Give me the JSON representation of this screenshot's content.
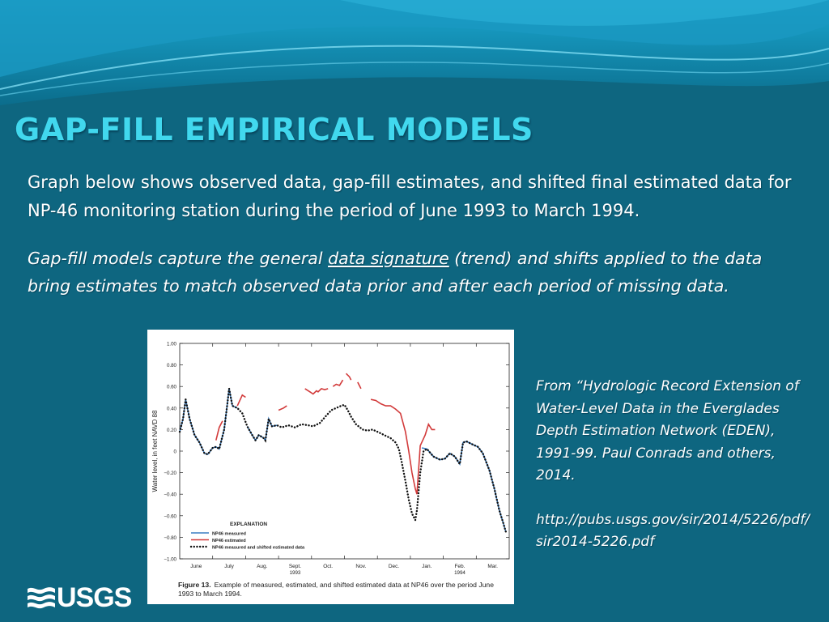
{
  "slide": {
    "title": "GAP-FILL EMPIRICAL MODELS",
    "paragraph1": "Graph below shows observed data, gap-fill estimates, and shifted final estimated data for NP-46 monitoring station during the period of June 1993 to March 1994.",
    "paragraph2": {
      "before": "Gap-fill models capture the general ",
      "underlined": "data signature",
      "after": " (trend) and shifts applied to the data bring estimates to match observed data prior and after each period of missing data."
    },
    "source": {
      "citation": "From “Hydrologic Record Extension of Water-Level Data in the Everglades Depth Estimation Network (EDEN), 1991-99. Paul Conrads and others, 2014.",
      "url": "http://pubs.usgs.gov/sir/2014/5226/pdf/sir2014-5226.pdf"
    },
    "logo": "USGS"
  },
  "colors": {
    "background": "#0e6680",
    "title": "#41d8ee",
    "measured": "#3b7fc4",
    "estimated": "#d23a3a",
    "shifted": "#111111"
  },
  "figure": {
    "label": "Figure 13.",
    "caption": "Example of measured, estimated, and shifted estimated data at NP46 over the period June 1993 to March 1994."
  },
  "chart_data": {
    "type": "line",
    "ylabel": "Water level, in feet NAVD 88",
    "ylim": [
      -1.0,
      1.0
    ],
    "yticks": [
      "1.00",
      "0.80",
      "0.60",
      "0.40",
      "0.20",
      "0",
      "−0.20",
      "−0.40",
      "−0.60",
      "−0.80",
      "−1.00"
    ],
    "xlim": [
      0,
      10
    ],
    "xticks": [
      {
        "label": "June",
        "sub": "",
        "pos": 0.5
      },
      {
        "label": "July",
        "sub": "",
        "pos": 1.5
      },
      {
        "label": "Aug.",
        "sub": "",
        "pos": 2.5
      },
      {
        "label": "Sept.",
        "sub": "1993",
        "pos": 3.5
      },
      {
        "label": "Oct.",
        "sub": "",
        "pos": 4.5
      },
      {
        "label": "Nov.",
        "sub": "",
        "pos": 5.5
      },
      {
        "label": "Dec.",
        "sub": "",
        "pos": 6.5
      },
      {
        "label": "Jan.",
        "sub": "",
        "pos": 7.5
      },
      {
        "label": "Feb.",
        "sub": "1994",
        "pos": 8.5
      },
      {
        "label": "Mar.",
        "sub": "",
        "pos": 9.5
      }
    ],
    "legend": {
      "title": "EXPLANATION",
      "placement": "bottom-left",
      "items": [
        "NP46 measured",
        "NP46 estimated",
        "NP46 measured and shifted estimated data"
      ]
    },
    "series": [
      {
        "name": "NP46 measured",
        "segments": [
          [
            [
              0,
              0.18
            ],
            [
              0.1,
              0.3
            ],
            [
              0.18,
              0.48
            ],
            [
              0.3,
              0.3
            ],
            [
              0.45,
              0.15
            ],
            [
              0.6,
              0.08
            ],
            [
              0.75,
              -0.02
            ],
            [
              0.85,
              -0.03
            ],
            [
              1.0,
              0.03
            ],
            [
              1.1,
              0.04
            ],
            [
              1.2,
              0.02
            ],
            [
              1.35,
              0.2
            ],
            [
              1.45,
              0.45
            ],
            [
              1.5,
              0.58
            ],
            [
              1.6,
              0.42
            ],
            [
              1.75,
              0.4
            ]
          ],
          [
            [
              2.05,
              0.23
            ],
            [
              2.2,
              0.15
            ],
            [
              2.3,
              0.1
            ],
            [
              2.4,
              0.15
            ],
            [
              2.55,
              0.12
            ],
            [
              2.6,
              0.1
            ],
            [
              2.7,
              0.3
            ],
            [
              2.8,
              0.23
            ],
            [
              2.95,
              0.24
            ]
          ],
          [
            [
              7.35,
              0.03
            ],
            [
              7.5,
              0.02
            ],
            [
              7.7,
              -0.05
            ],
            [
              7.9,
              -0.08
            ],
            [
              8.05,
              -0.07
            ],
            [
              8.2,
              -0.02
            ],
            [
              8.35,
              -0.05
            ],
            [
              8.5,
              -0.12
            ],
            [
              8.6,
              0.08
            ],
            [
              8.7,
              0.09
            ],
            [
              8.9,
              0.06
            ],
            [
              9.05,
              0.04
            ],
            [
              9.2,
              -0.02
            ],
            [
              9.4,
              -0.18
            ],
            [
              9.55,
              -0.35
            ],
            [
              9.7,
              -0.55
            ],
            [
              9.8,
              -0.65
            ],
            [
              9.9,
              -0.75
            ]
          ]
        ]
      },
      {
        "name": "NP46 estimated",
        "segments": [
          [
            [
              1.1,
              0.1
            ],
            [
              1.2,
              0.22
            ],
            [
              1.3,
              0.28
            ]
          ],
          [
            [
              1.75,
              0.42
            ],
            [
              1.9,
              0.52
            ],
            [
              2.0,
              0.5
            ]
          ],
          [
            [
              3.0,
              0.38
            ],
            [
              3.15,
              0.4
            ],
            [
              3.25,
              0.42
            ]
          ],
          [
            [
              3.8,
              0.58
            ],
            [
              3.95,
              0.55
            ],
            [
              4.05,
              0.53
            ],
            [
              4.15,
              0.56
            ],
            [
              4.2,
              0.55
            ],
            [
              4.3,
              0.58
            ],
            [
              4.4,
              0.57
            ],
            [
              4.5,
              0.58
            ]
          ],
          [
            [
              4.65,
              0.6
            ],
            [
              4.75,
              0.62
            ],
            [
              4.85,
              0.61
            ],
            [
              4.95,
              0.66
            ]
          ],
          [
            [
              5.05,
              0.72
            ],
            [
              5.15,
              0.69
            ],
            [
              5.2,
              0.66
            ]
          ],
          [
            [
              5.4,
              0.64
            ],
            [
              5.5,
              0.58
            ]
          ],
          [
            [
              5.8,
              0.48
            ],
            [
              5.95,
              0.47
            ],
            [
              6.1,
              0.44
            ],
            [
              6.25,
              0.42
            ],
            [
              6.4,
              0.42
            ],
            [
              6.55,
              0.39
            ],
            [
              6.7,
              0.35
            ],
            [
              6.85,
              0.18
            ],
            [
              6.95,
              0.0
            ],
            [
              7.05,
              -0.2
            ],
            [
              7.15,
              -0.35
            ],
            [
              7.2,
              -0.4
            ],
            [
              7.3,
              0.05
            ],
            [
              7.45,
              0.15
            ],
            [
              7.55,
              0.25
            ],
            [
              7.65,
              0.2
            ],
            [
              7.75,
              0.2
            ]
          ]
        ]
      },
      {
        "name": "NP46 measured and shifted estimated data",
        "segments": [
          [
            [
              0,
              0.18
            ],
            [
              0.1,
              0.3
            ],
            [
              0.18,
              0.48
            ],
            [
              0.3,
              0.3
            ],
            [
              0.45,
              0.15
            ],
            [
              0.6,
              0.08
            ],
            [
              0.75,
              -0.02
            ],
            [
              0.85,
              -0.03
            ],
            [
              1.0,
              0.03
            ],
            [
              1.1,
              0.04
            ],
            [
              1.2,
              0.02
            ],
            [
              1.35,
              0.2
            ],
            [
              1.45,
              0.45
            ],
            [
              1.5,
              0.58
            ],
            [
              1.6,
              0.42
            ],
            [
              1.75,
              0.4
            ],
            [
              1.9,
              0.35
            ],
            [
              2.05,
              0.23
            ],
            [
              2.2,
              0.15
            ],
            [
              2.3,
              0.1
            ],
            [
              2.4,
              0.15
            ],
            [
              2.55,
              0.12
            ],
            [
              2.6,
              0.1
            ],
            [
              2.7,
              0.3
            ],
            [
              2.8,
              0.23
            ],
            [
              2.95,
              0.24
            ],
            [
              3.1,
              0.22
            ],
            [
              3.3,
              0.24
            ],
            [
              3.5,
              0.22
            ],
            [
              3.7,
              0.25
            ],
            [
              3.9,
              0.24
            ],
            [
              4.05,
              0.23
            ],
            [
              4.25,
              0.26
            ],
            [
              4.45,
              0.33
            ],
            [
              4.6,
              0.38
            ],
            [
              4.75,
              0.4
            ],
            [
              4.9,
              0.42
            ],
            [
              5.0,
              0.43
            ],
            [
              5.1,
              0.38
            ],
            [
              5.2,
              0.32
            ],
            [
              5.35,
              0.25
            ],
            [
              5.55,
              0.2
            ],
            [
              5.7,
              0.19
            ],
            [
              5.85,
              0.2
            ],
            [
              6.0,
              0.18
            ],
            [
              6.2,
              0.15
            ],
            [
              6.4,
              0.12
            ],
            [
              6.55,
              0.08
            ],
            [
              6.65,
              0.02
            ],
            [
              6.75,
              -0.12
            ],
            [
              6.85,
              -0.28
            ],
            [
              6.95,
              -0.45
            ],
            [
              7.05,
              -0.58
            ],
            [
              7.15,
              -0.64
            ],
            [
              7.2,
              -0.55
            ],
            [
              7.3,
              -0.2
            ],
            [
              7.4,
              0.0
            ],
            [
              7.5,
              0.02
            ],
            [
              7.7,
              -0.05
            ],
            [
              7.9,
              -0.08
            ],
            [
              8.05,
              -0.07
            ],
            [
              8.2,
              -0.02
            ],
            [
              8.35,
              -0.05
            ],
            [
              8.5,
              -0.12
            ],
            [
              8.6,
              0.08
            ],
            [
              8.7,
              0.09
            ],
            [
              8.9,
              0.06
            ],
            [
              9.05,
              0.04
            ],
            [
              9.2,
              -0.02
            ],
            [
              9.4,
              -0.18
            ],
            [
              9.55,
              -0.35
            ],
            [
              9.7,
              -0.55
            ],
            [
              9.8,
              -0.65
            ],
            [
              9.9,
              -0.75
            ]
          ]
        ]
      }
    ]
  }
}
